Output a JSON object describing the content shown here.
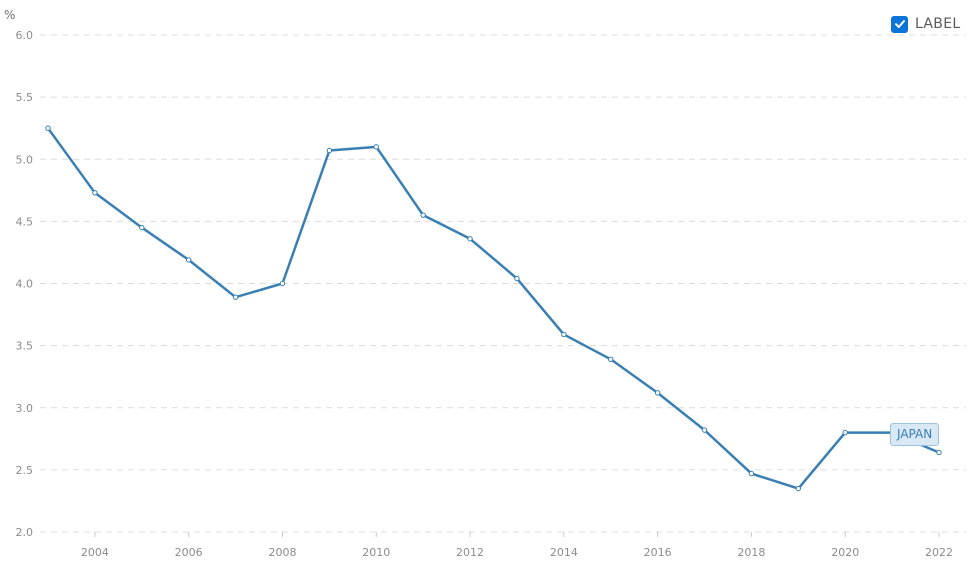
{
  "legend": {
    "checkbox_label": "LABEL",
    "checked": true,
    "accent": "#0a74da"
  },
  "chart_data": {
    "type": "line",
    "unit_label": "%",
    "x": [
      2003,
      2004,
      2005,
      2006,
      2007,
      2008,
      2009,
      2010,
      2011,
      2012,
      2013,
      2014,
      2015,
      2016,
      2017,
      2018,
      2019,
      2020,
      2021,
      2022
    ],
    "series": [
      {
        "name": "JAPAN",
        "color": "#3a7fb4",
        "values": [
          5.25,
          4.73,
          4.45,
          4.19,
          3.89,
          4.0,
          5.07,
          5.1,
          4.55,
          4.36,
          4.04,
          3.59,
          3.39,
          3.12,
          2.82,
          2.47,
          2.35,
          2.8,
          2.8,
          2.64
        ]
      }
    ],
    "x_ticks": [
      "2004",
      "2006",
      "2008",
      "2010",
      "2012",
      "2014",
      "2016",
      "2018",
      "2020",
      "2022"
    ],
    "y_ticks": [
      "2.0",
      "2.5",
      "3.0",
      "3.5",
      "4.0",
      "4.5",
      "5.0",
      "5.5",
      "6.0"
    ],
    "ylim": [
      2.0,
      6.0
    ],
    "xlim": [
      2003,
      2022
    ],
    "grid": true,
    "title": "",
    "xlabel": "",
    "ylabel": ""
  }
}
